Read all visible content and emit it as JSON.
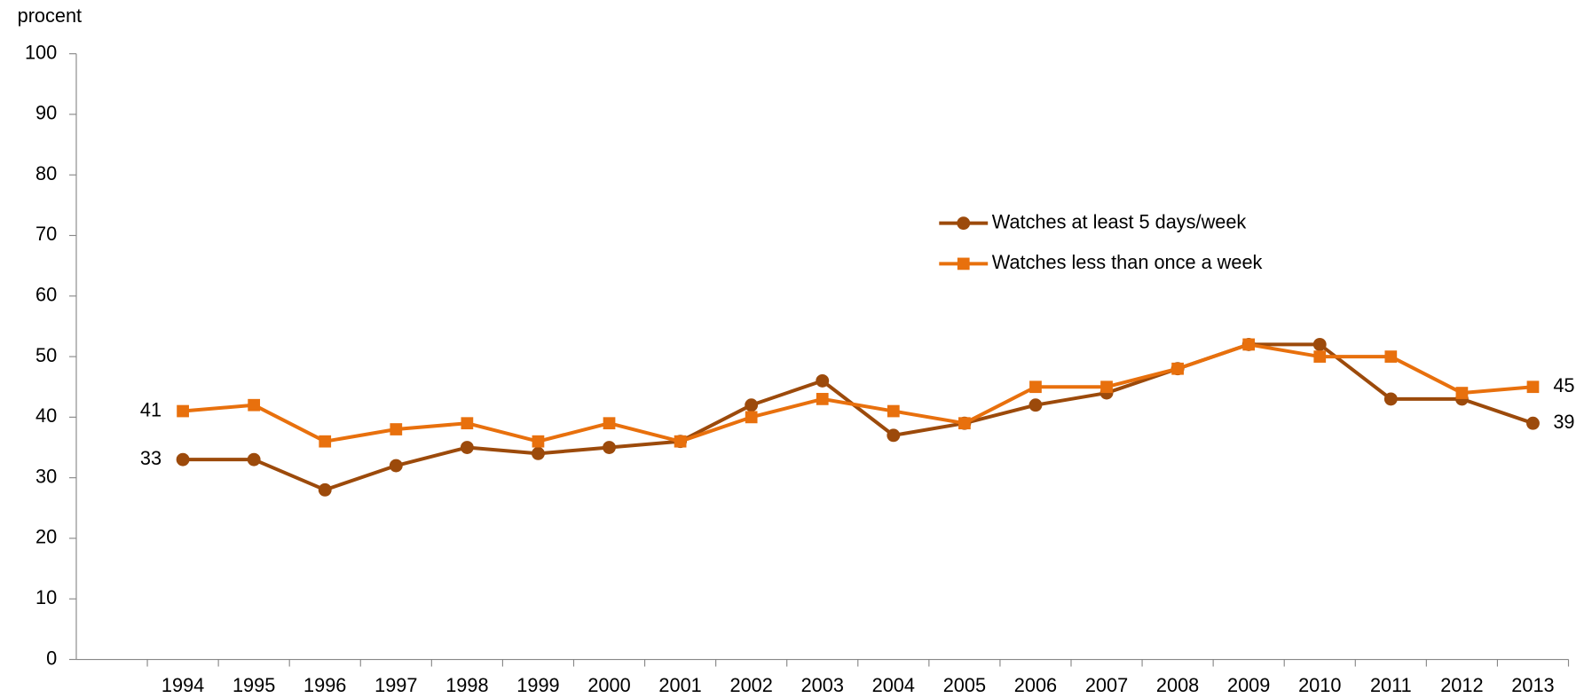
{
  "chart_data": {
    "type": "line",
    "y_label": "procent",
    "categories": [
      null,
      "1994",
      "1995",
      "1996",
      "1997",
      "1998",
      "1999",
      "2000",
      "2001",
      "2002",
      "2003",
      "2004",
      "2005",
      "2006",
      "2007",
      "2008",
      "2009",
      "2010",
      "2011",
      "2012",
      "2013"
    ],
    "series": [
      {
        "name": "Watches at least 5 days/week",
        "color": "#9c4a0b",
        "marker": "circle",
        "values": [
          null,
          33,
          33,
          28,
          32,
          35,
          34,
          35,
          36,
          42,
          46,
          37,
          39,
          42,
          44,
          48,
          52,
          52,
          43,
          43,
          39
        ]
      },
      {
        "name": "Watches less than once a week",
        "color": "#e8700d",
        "marker": "square",
        "values": [
          null,
          41,
          42,
          36,
          38,
          39,
          36,
          39,
          36,
          40,
          43,
          41,
          39,
          45,
          45,
          48,
          52,
          50,
          50,
          44,
          45
        ]
      }
    ],
    "ylim": [
      0,
      100
    ],
    "yticks": [
      0,
      10,
      20,
      30,
      40,
      50,
      60,
      70,
      80,
      90,
      100
    ],
    "grid": false,
    "legend": "upper right",
    "end_labels": true
  }
}
